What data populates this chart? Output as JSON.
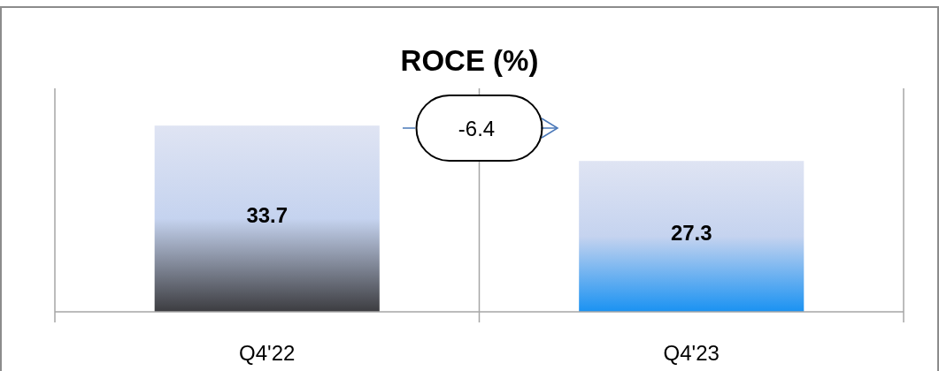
{
  "chart_data": {
    "type": "bar",
    "title": "ROCE (%)",
    "categories": [
      "Q4'22",
      "Q4'23"
    ],
    "values": [
      33.7,
      27.3
    ],
    "colors": [
      "#3c3c40",
      "#1a92f2"
    ],
    "data_labels": true,
    "annotations": [
      "-6.4"
    ]
  }
}
